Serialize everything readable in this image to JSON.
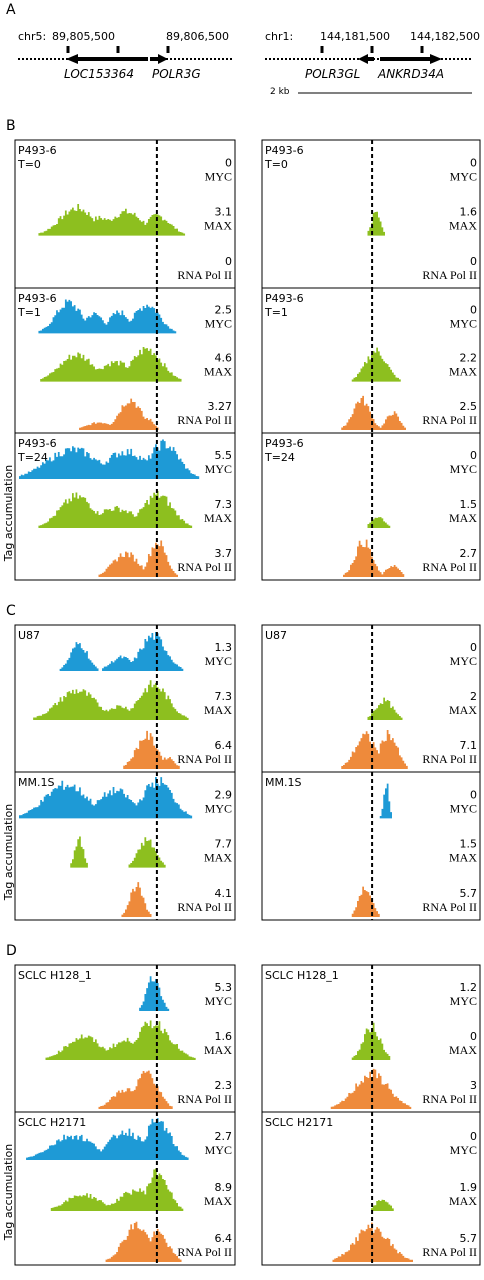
{
  "panel_a": {
    "label": "A",
    "left": {
      "chrom": "chr5:",
      "coords": [
        "89,805,500",
        "89,806,500"
      ],
      "genes": [
        "LOC153364",
        "POLR3G"
      ]
    },
    "right": {
      "chrom": "chr1:",
      "coords": [
        "144,181,500",
        "144,182,500"
      ],
      "genes": [
        "POLR3GL",
        "ANKRD34A"
      ],
      "scale": "2 kb"
    }
  },
  "sections": [
    {
      "label": "B",
      "y_label": "Tag accumulation",
      "rows": [
        {
          "left": {
            "sample": "P493-6",
            "time": "T=0",
            "tracks": [
              {
                "value": 0,
                "factor": "MYC"
              },
              {
                "value": 3.1,
                "factor": "MAX"
              },
              {
                "value": 0,
                "factor": "RNA Pol II"
              }
            ]
          },
          "right": {
            "sample": "P493-6",
            "time": "T=0",
            "tracks": [
              {
                "value": 0,
                "factor": "MYC"
              },
              {
                "value": 1.6,
                "factor": "MAX"
              },
              {
                "value": 0,
                "factor": "RNA Pol II"
              }
            ]
          }
        },
        {
          "left": {
            "sample": "P493-6",
            "time": "T=1",
            "tracks": [
              {
                "value": 2.5,
                "factor": "MYC"
              },
              {
                "value": 4.6,
                "factor": "MAX"
              },
              {
                "value": 3.27,
                "factor": "RNA Pol II"
              }
            ]
          },
          "right": {
            "sample": "P493-6",
            "time": "T=1",
            "tracks": [
              {
                "value": 0,
                "factor": "MYC"
              },
              {
                "value": 2.2,
                "factor": "MAX"
              },
              {
                "value": 2.5,
                "factor": "RNA Pol II"
              }
            ]
          }
        },
        {
          "left": {
            "sample": "P493-6",
            "time": "T=24",
            "tracks": [
              {
                "value": 5.5,
                "factor": "MYC"
              },
              {
                "value": 7.3,
                "factor": "MAX"
              },
              {
                "value": 3.7,
                "factor": "RNA Pol II"
              }
            ]
          },
          "right": {
            "sample": "P493-6",
            "time": "T=24",
            "tracks": [
              {
                "value": 0,
                "factor": "MYC"
              },
              {
                "value": 1.5,
                "factor": "MAX"
              },
              {
                "value": 2.7,
                "factor": "RNA Pol II"
              }
            ]
          }
        }
      ]
    },
    {
      "label": "C",
      "y_label": "Tag accumulation",
      "rows": [
        {
          "left": {
            "sample": "U87",
            "tracks": [
              {
                "value": 1.3,
                "factor": "MYC"
              },
              {
                "value": 7.3,
                "factor": "MAX"
              },
              {
                "value": 6.4,
                "factor": "RNA Pol II"
              }
            ]
          },
          "right": {
            "sample": "U87",
            "tracks": [
              {
                "value": 0,
                "factor": "MYC"
              },
              {
                "value": 2,
                "factor": "MAX"
              },
              {
                "value": 7.1,
                "factor": "RNA Pol II"
              }
            ]
          }
        },
        {
          "left": {
            "sample": "MM.1S",
            "tracks": [
              {
                "value": 2.9,
                "factor": "MYC"
              },
              {
                "value": 7.7,
                "factor": "MAX"
              },
              {
                "value": 4.1,
                "factor": "RNA Pol II"
              }
            ]
          },
          "right": {
            "sample": "MM.1S",
            "tracks": [
              {
                "value": 0,
                "factor": "MYC"
              },
              {
                "value": 1.5,
                "factor": "MAX"
              },
              {
                "value": 5.7,
                "factor": "RNA Pol II"
              }
            ]
          }
        }
      ]
    },
    {
      "label": "D",
      "y_label": "Tag accumulation",
      "rows": [
        {
          "left": {
            "sample": "SCLC H128_1",
            "tracks": [
              {
                "value": 5.3,
                "factor": "MYC"
              },
              {
                "value": 1.6,
                "factor": "MAX"
              },
              {
                "value": 2.3,
                "factor": "RNA Pol II"
              }
            ]
          },
          "right": {
            "sample": "SCLC H128_1",
            "tracks": [
              {
                "value": 1.2,
                "factor": "MYC"
              },
              {
                "value": 0,
                "factor": "MAX"
              },
              {
                "value": 3,
                "factor": "RNA Pol II"
              }
            ]
          }
        },
        {
          "left": {
            "sample": "SCLC H2171",
            "tracks": [
              {
                "value": 2.7,
                "factor": "MYC"
              },
              {
                "value": 8.9,
                "factor": "MAX"
              },
              {
                "value": 6.4,
                "factor": "RNA Pol II"
              }
            ]
          },
          "right": {
            "sample": "SCLC H2171",
            "tracks": [
              {
                "value": 0,
                "factor": "MYC"
              },
              {
                "value": 1.9,
                "factor": "MAX"
              },
              {
                "value": 5.7,
                "factor": "RNA Pol II"
              }
            ]
          }
        }
      ]
    }
  ]
}
